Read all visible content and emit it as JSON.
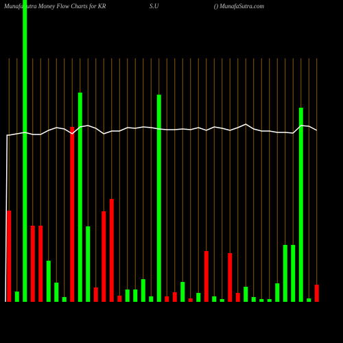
{
  "chart_data": {
    "type": "bar",
    "title": "MunafaSutra  Money Flow  Charts for KR",
    "symbol": "S.U",
    "source": "() MunafaSutra.com",
    "values": [
      133,
      15,
      440,
      111,
      111,
      60,
      28,
      7,
      255,
      305,
      110,
      21,
      132,
      150,
      9,
      18,
      18,
      33,
      8,
      302,
      8,
      14,
      29,
      5,
      13,
      74,
      8,
      4,
      71,
      13,
      22,
      7,
      4,
      4,
      27,
      83,
      83,
      283,
      5,
      25
    ],
    "colors": [
      "#ff0000",
      "#00ff00",
      "#00ff00",
      "#ff0000",
      "#ff0000",
      "#00ff00",
      "#00ff00",
      "#00ff00",
      "#ff0000",
      "#00ff00",
      "#00ff00",
      "#ff0000",
      "#ff0000",
      "#ff0000",
      "#ff0000",
      "#00ff00",
      "#00ff00",
      "#00ff00",
      "#00ff00",
      "#00ff00",
      "#ff0000",
      "#ff0000",
      "#00ff00",
      "#ff0000",
      "#00ff00",
      "#ff0000",
      "#00ff00",
      "#00ff00",
      "#ff0000",
      "#ff0000",
      "#00ff00",
      "#00ff00",
      "#00ff00",
      "#00ff00",
      "#00ff00",
      "#00ff00",
      "#00ff00",
      "#00ff00",
      "#00ff00",
      "#ff0000"
    ],
    "line": {
      "color": "#ffffff",
      "values": [
        243,
        245,
        247,
        244,
        244,
        250,
        254,
        252,
        245,
        255,
        257,
        253,
        245,
        249,
        249,
        254,
        253,
        255,
        254,
        252,
        251,
        251,
        252,
        251,
        254,
        250,
        255,
        253,
        250,
        254,
        259,
        252,
        249,
        249,
        247,
        247,
        246,
        257,
        256,
        250
      ]
    },
    "ylim": [
      0,
      440
    ],
    "grid": true,
    "grid_color": "#8a5a00"
  }
}
